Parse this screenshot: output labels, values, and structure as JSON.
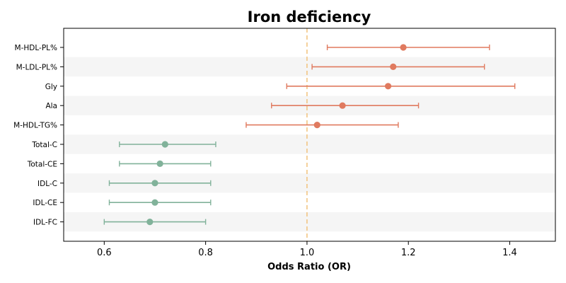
{
  "chart_data": {
    "type": "forest",
    "title": "Iron deficiency",
    "xlabel": "Odds Ratio (OR)",
    "ylabel": "",
    "xlim": [
      0.52,
      1.49
    ],
    "xticks": [
      0.6,
      0.8,
      1.0,
      1.2,
      1.4
    ],
    "xtick_labels": [
      "0.6",
      "0.8",
      "1.0",
      "1.2",
      "1.4"
    ],
    "reference_line": 1.0,
    "grid": false,
    "alternating_row_shading": true,
    "colors": {
      "positive": "#e07a5f",
      "negative": "#81b29a",
      "reference": "#f2c27b",
      "row_shade": "#f5f5f5"
    },
    "rows": [
      {
        "label": "M-HDL-PL%",
        "or": 1.19,
        "lo": 1.04,
        "hi": 1.36,
        "group": "positive"
      },
      {
        "label": "M-LDL-PL%",
        "or": 1.17,
        "lo": 1.01,
        "hi": 1.35,
        "group": "positive"
      },
      {
        "label": "Gly",
        "or": 1.16,
        "lo": 0.96,
        "hi": 1.41,
        "group": "positive"
      },
      {
        "label": "Ala",
        "or": 1.07,
        "lo": 0.93,
        "hi": 1.22,
        "group": "positive"
      },
      {
        "label": "M-HDL-TG%",
        "or": 1.02,
        "lo": 0.88,
        "hi": 1.18,
        "group": "positive"
      },
      {
        "label": "Total-C",
        "or": 0.72,
        "lo": 0.63,
        "hi": 0.82,
        "group": "negative"
      },
      {
        "label": "Total-CE",
        "or": 0.71,
        "lo": 0.63,
        "hi": 0.81,
        "group": "negative"
      },
      {
        "label": "IDL-C",
        "or": 0.7,
        "lo": 0.61,
        "hi": 0.81,
        "group": "negative"
      },
      {
        "label": "IDL-CE",
        "or": 0.7,
        "lo": 0.61,
        "hi": 0.81,
        "group": "negative"
      },
      {
        "label": "IDL-FC",
        "or": 0.69,
        "lo": 0.6,
        "hi": 0.8,
        "group": "negative"
      }
    ]
  }
}
